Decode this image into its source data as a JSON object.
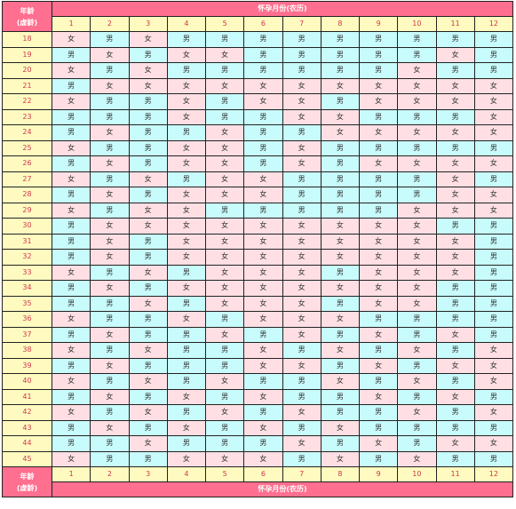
{
  "header": {
    "age_label_line1": "年龄",
    "age_label_line2": "(虚龄)",
    "month_title": "怀孕月份(农历)"
  },
  "months": [
    "1",
    "2",
    "3",
    "4",
    "5",
    "6",
    "7",
    "8",
    "9",
    "10",
    "11",
    "12"
  ],
  "colors": {
    "boy": "#c8fbfb",
    "girl": "#ffdfe4",
    "header": "#ff6f8f",
    "label": "#fffbc0",
    "label_text": "#d0364e"
  },
  "rows": [
    {
      "age": "18",
      "cells": [
        "女",
        "男",
        "女",
        "男",
        "男",
        "男",
        "男",
        "男",
        "男",
        "男",
        "男",
        "男"
      ]
    },
    {
      "age": "19",
      "cells": [
        "男",
        "女",
        "男",
        "女",
        "女",
        "男",
        "男",
        "男",
        "男",
        "男",
        "女",
        "男"
      ]
    },
    {
      "age": "20",
      "cells": [
        "女",
        "男",
        "女",
        "男",
        "男",
        "男",
        "男",
        "男",
        "男",
        "女",
        "男",
        "男"
      ]
    },
    {
      "age": "21",
      "cells": [
        "男",
        "女",
        "女",
        "女",
        "女",
        "女",
        "女",
        "女",
        "女",
        "女",
        "女",
        "女"
      ]
    },
    {
      "age": "22",
      "cells": [
        "女",
        "男",
        "男",
        "女",
        "男",
        "女",
        "女",
        "男",
        "女",
        "女",
        "女",
        "女"
      ]
    },
    {
      "age": "23",
      "cells": [
        "男",
        "男",
        "男",
        "女",
        "男",
        "男",
        "女",
        "女",
        "男",
        "男",
        "男",
        "女"
      ]
    },
    {
      "age": "24",
      "cells": [
        "男",
        "女",
        "男",
        "男",
        "女",
        "男",
        "男",
        "女",
        "女",
        "女",
        "女",
        "女"
      ]
    },
    {
      "age": "25",
      "cells": [
        "女",
        "男",
        "男",
        "女",
        "女",
        "男",
        "女",
        "男",
        "男",
        "男",
        "男",
        "男"
      ]
    },
    {
      "age": "26",
      "cells": [
        "男",
        "女",
        "男",
        "女",
        "女",
        "男",
        "女",
        "男",
        "女",
        "女",
        "女",
        "女"
      ]
    },
    {
      "age": "27",
      "cells": [
        "女",
        "男",
        "女",
        "男",
        "女",
        "女",
        "男",
        "男",
        "男",
        "男",
        "女",
        "男"
      ]
    },
    {
      "age": "28",
      "cells": [
        "男",
        "女",
        "男",
        "女",
        "女",
        "女",
        "男",
        "男",
        "男",
        "男",
        "女",
        "女"
      ]
    },
    {
      "age": "29",
      "cells": [
        "女",
        "男",
        "女",
        "女",
        "男",
        "男",
        "男",
        "男",
        "男",
        "女",
        "女",
        "女"
      ]
    },
    {
      "age": "30",
      "cells": [
        "男",
        "女",
        "女",
        "女",
        "女",
        "女",
        "女",
        "女",
        "女",
        "女",
        "男",
        "男"
      ]
    },
    {
      "age": "31",
      "cells": [
        "男",
        "女",
        "男",
        "女",
        "女",
        "女",
        "女",
        "女",
        "女",
        "女",
        "女",
        "男"
      ]
    },
    {
      "age": "32",
      "cells": [
        "男",
        "女",
        "男",
        "女",
        "女",
        "女",
        "女",
        "女",
        "女",
        "女",
        "女",
        "男"
      ]
    },
    {
      "age": "33",
      "cells": [
        "女",
        "男",
        "女",
        "男",
        "女",
        "女",
        "女",
        "男",
        "女",
        "女",
        "女",
        "男"
      ]
    },
    {
      "age": "34",
      "cells": [
        "男",
        "女",
        "男",
        "女",
        "女",
        "女",
        "女",
        "女",
        "女",
        "女",
        "男",
        "男"
      ]
    },
    {
      "age": "35",
      "cells": [
        "男",
        "男",
        "女",
        "男",
        "女",
        "女",
        "女",
        "男",
        "女",
        "女",
        "男",
        "男"
      ]
    },
    {
      "age": "36",
      "cells": [
        "女",
        "男",
        "男",
        "女",
        "男",
        "女",
        "女",
        "女",
        "男",
        "男",
        "男",
        "男"
      ]
    },
    {
      "age": "37",
      "cells": [
        "男",
        "女",
        "男",
        "男",
        "女",
        "男",
        "女",
        "男",
        "女",
        "男",
        "女",
        "男"
      ]
    },
    {
      "age": "38",
      "cells": [
        "女",
        "男",
        "女",
        "男",
        "男",
        "女",
        "男",
        "女",
        "男",
        "女",
        "男",
        "女"
      ]
    },
    {
      "age": "39",
      "cells": [
        "男",
        "女",
        "男",
        "男",
        "男",
        "女",
        "女",
        "男",
        "女",
        "男",
        "女",
        "女"
      ]
    },
    {
      "age": "40",
      "cells": [
        "女",
        "男",
        "女",
        "男",
        "女",
        "男",
        "男",
        "女",
        "男",
        "女",
        "男",
        "女"
      ]
    },
    {
      "age": "41",
      "cells": [
        "男",
        "女",
        "男",
        "女",
        "男",
        "女",
        "男",
        "男",
        "女",
        "男",
        "女",
        "男"
      ]
    },
    {
      "age": "42",
      "cells": [
        "女",
        "男",
        "女",
        "男",
        "女",
        "男",
        "女",
        "男",
        "男",
        "女",
        "男",
        "女"
      ]
    },
    {
      "age": "43",
      "cells": [
        "男",
        "女",
        "男",
        "女",
        "男",
        "女",
        "男",
        "女",
        "男",
        "男",
        "男",
        "男"
      ]
    },
    {
      "age": "44",
      "cells": [
        "男",
        "男",
        "女",
        "男",
        "男",
        "男",
        "女",
        "男",
        "女",
        "男",
        "女",
        "女"
      ]
    },
    {
      "age": "45",
      "cells": [
        "女",
        "男",
        "男",
        "女",
        "女",
        "女",
        "男",
        "女",
        "男",
        "女",
        "男",
        "男"
      ]
    }
  ]
}
